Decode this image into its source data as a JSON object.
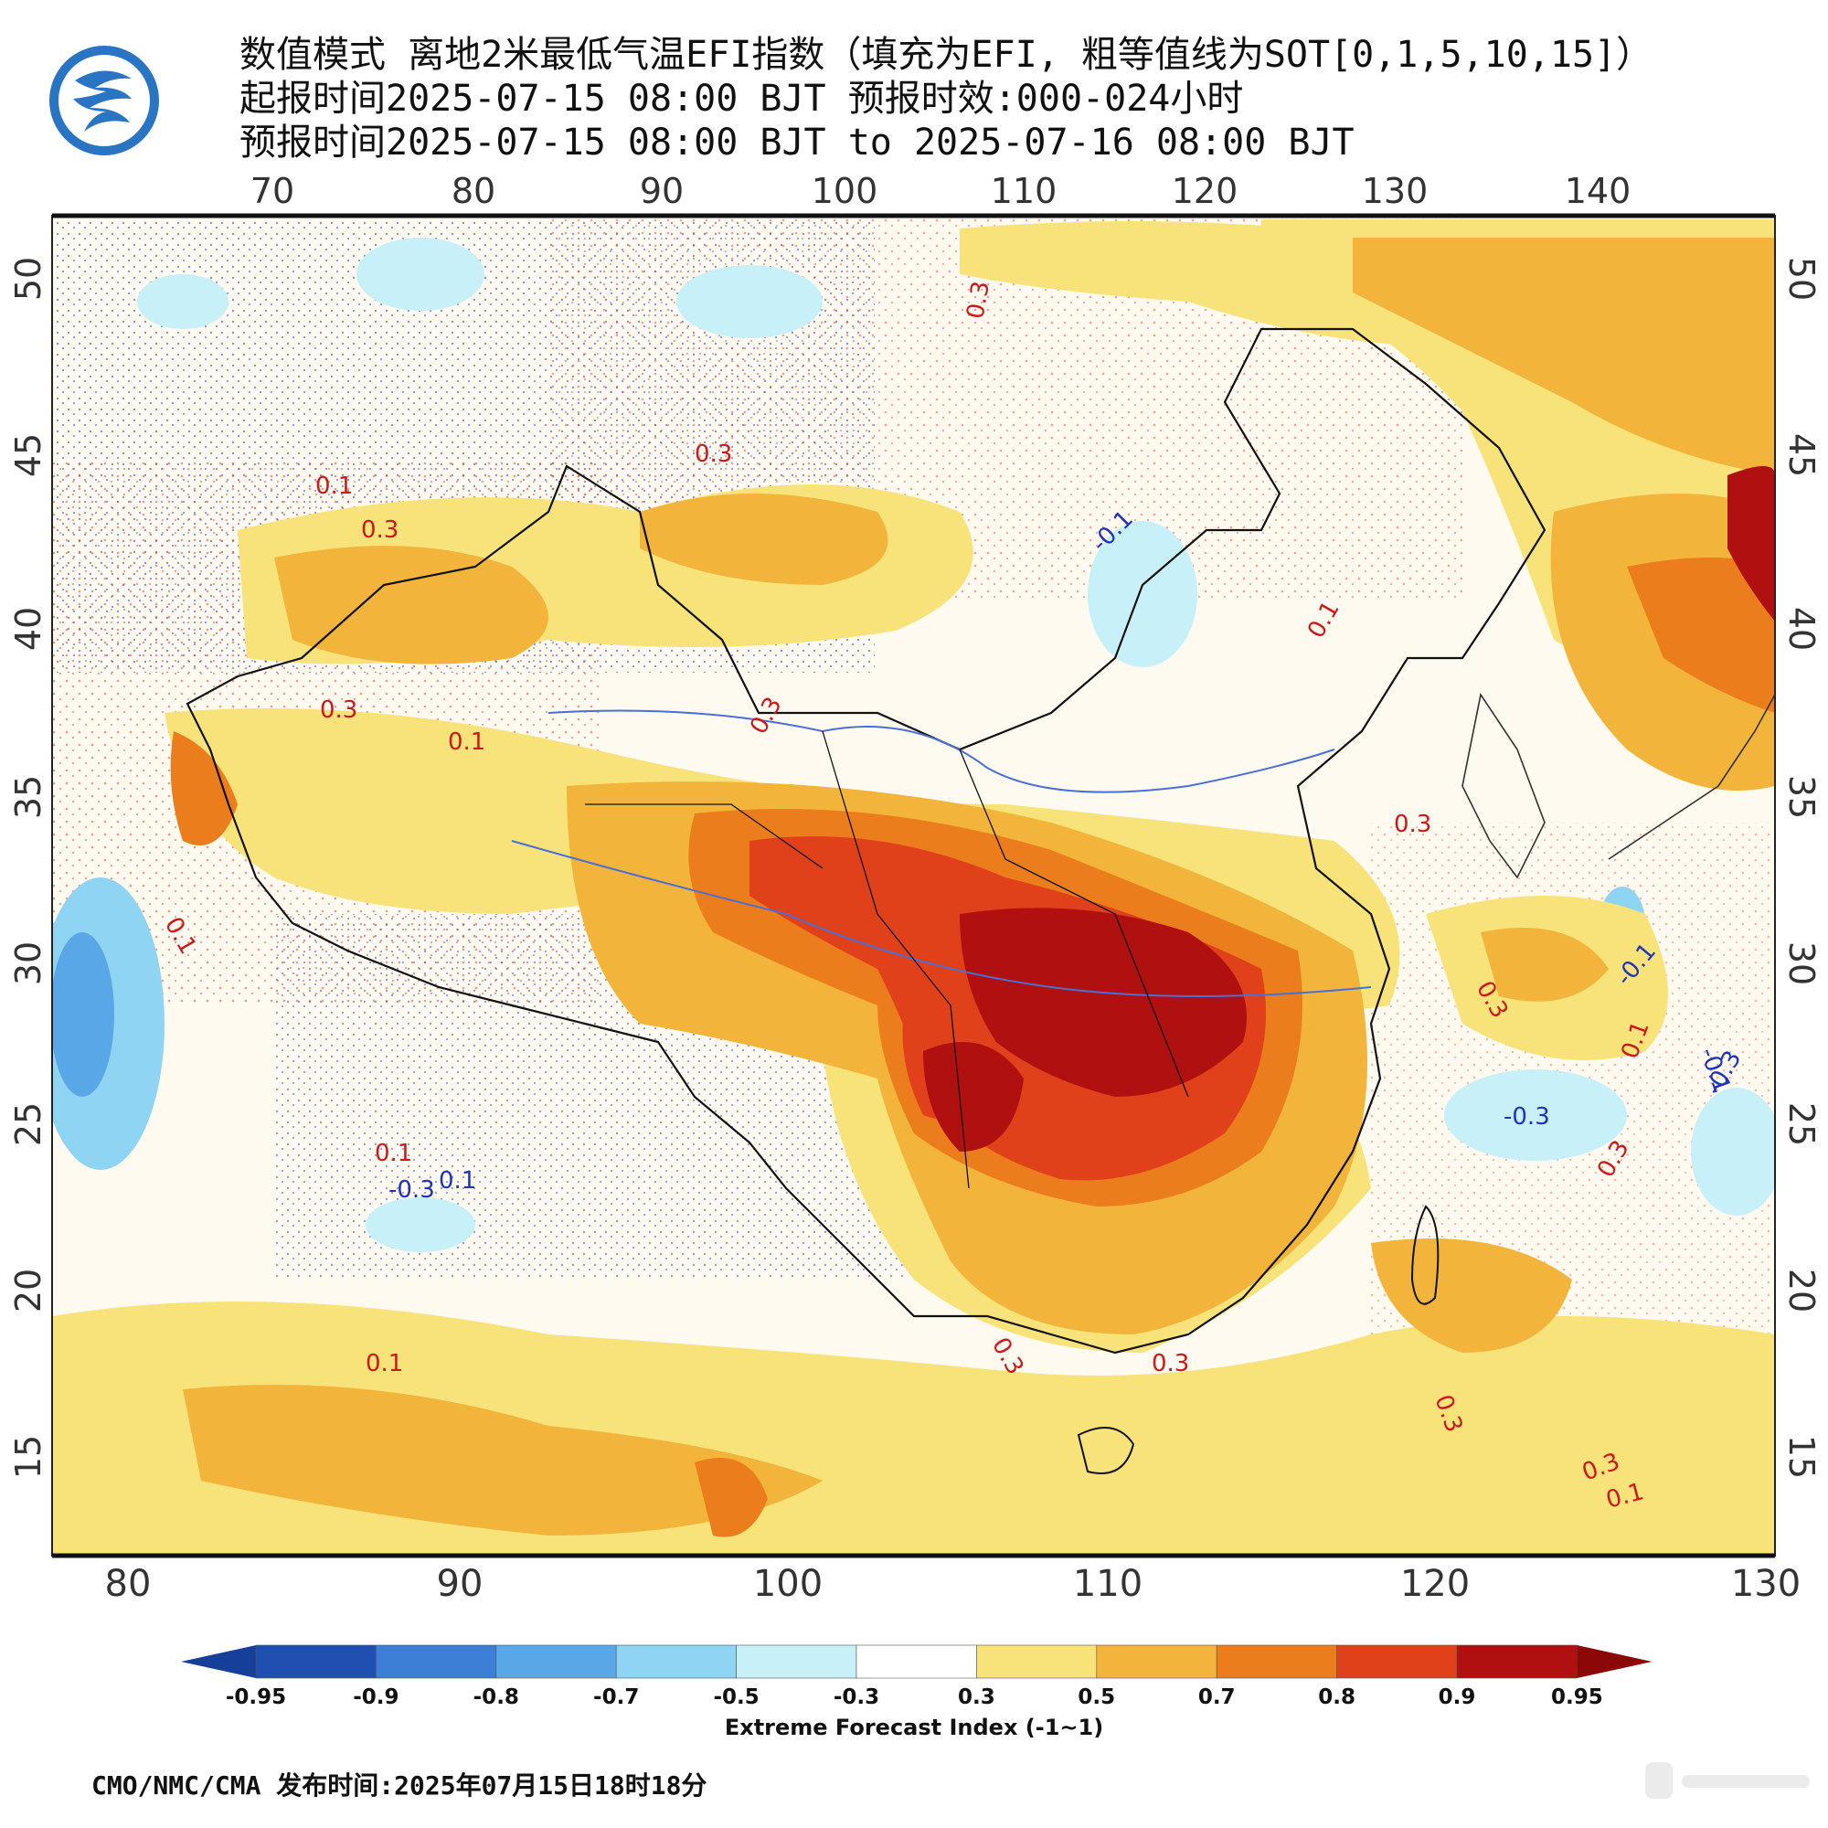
{
  "header": {
    "line1": "数值模式 离地2米最低气温EFI指数（填充为EFI, 粗等值线为SOT[0,1,5,10,15]）",
    "line2": "起报时间2025-07-15 08:00 BJT 预报时效:000-024小时",
    "line3": "预报时间2025-07-15 08:00 BJT to 2025-07-16 08:00 BJT"
  },
  "map": {
    "top_lon_labels": [
      "70",
      "80",
      "90",
      "100",
      "110",
      "120",
      "130",
      "140"
    ],
    "bottom_lon_labels": [
      "80",
      "90",
      "100",
      "110",
      "120",
      "130"
    ],
    "left_lat_labels": [
      "50",
      "45",
      "40",
      "35",
      "30",
      "25",
      "20",
      "15"
    ],
    "right_lat_labels": [
      "50",
      "45",
      "40",
      "35",
      "30",
      "25",
      "20",
      "15"
    ],
    "contour_labels": [
      {
        "text": "0.1",
        "color": "red"
      },
      {
        "text": "0.3",
        "color": "red"
      },
      {
        "text": "0.3",
        "color": "red"
      },
      {
        "text": "0.3",
        "color": "red"
      },
      {
        "text": "0.3",
        "color": "red"
      },
      {
        "text": "0.1",
        "color": "red"
      },
      {
        "text": "0.3",
        "color": "red"
      },
      {
        "text": "-0.1",
        "color": "blue"
      },
      {
        "text": "0.1",
        "color": "red"
      },
      {
        "text": "0.3",
        "color": "red"
      },
      {
        "text": "0.1",
        "color": "red"
      },
      {
        "text": "0.1",
        "color": "red"
      },
      {
        "text": "-0.3",
        "color": "blue"
      },
      {
        "text": "0.1",
        "color": "blue"
      },
      {
        "text": "0.3",
        "color": "red"
      },
      {
        "text": "-0.3",
        "color": "blue"
      },
      {
        "text": "-0.1",
        "color": "blue"
      },
      {
        "text": "0.1",
        "color": "red"
      },
      {
        "text": "0.3",
        "color": "red"
      },
      {
        "text": "0.3",
        "color": "red"
      },
      {
        "text": "0.1",
        "color": "red"
      },
      {
        "text": "0.3",
        "color": "red"
      },
      {
        "text": "0.3",
        "color": "red"
      },
      {
        "text": "0.3",
        "color": "red"
      },
      {
        "text": "0.1",
        "color": "red"
      },
      {
        "text": "-0.1",
        "color": "blue"
      },
      {
        "text": "-0.3",
        "color": "blue"
      }
    ]
  },
  "colorbar": {
    "labels": [
      "-0.95",
      "-0.9",
      "-0.8",
      "-0.7",
      "-0.5",
      "-0.3",
      "0.3",
      "0.5",
      "0.7",
      "0.8",
      "0.9",
      "0.95"
    ],
    "colors": [
      "#1f4fb0",
      "#3d7fd6",
      "#5aa7e8",
      "#8fd4f2",
      "#c8f0f8",
      "#ffffff",
      "#f8e27a",
      "#f2b43a",
      "#ec7d1c",
      "#e0401a",
      "#b01010"
    ],
    "low_arrow_color": "#163f9a",
    "high_arrow_color": "#8c0808",
    "title": "Extreme Forecast Index (-1~1)"
  },
  "footer": {
    "text": "CMO/NMC/CMA 发布时间:2025年07月15日18时18分"
  },
  "icons": {
    "logo": "cma-logo-icon",
    "watermark": "weibo-watermark"
  }
}
